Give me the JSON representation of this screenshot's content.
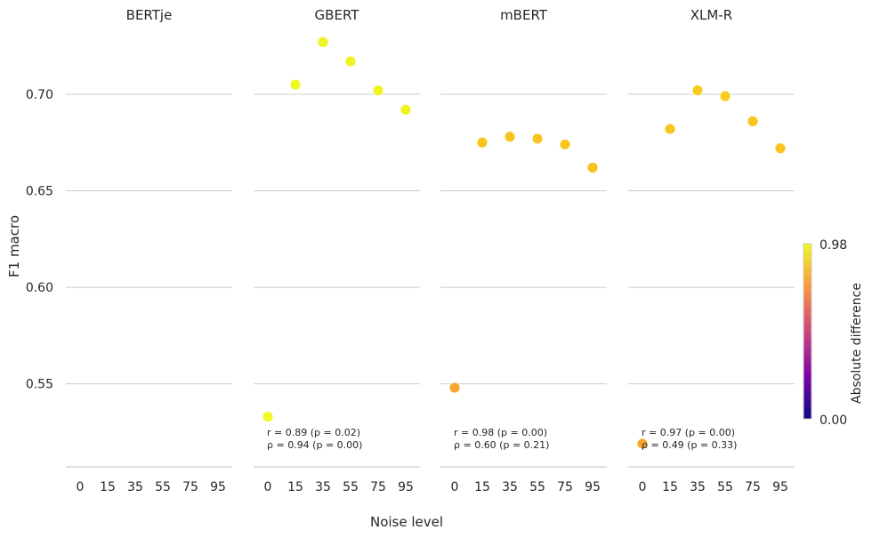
{
  "chart_data": {
    "type": "scatter",
    "xlabel": "Noise level",
    "ylabel": "F1 macro",
    "x_categories": [
      "0",
      "15",
      "35",
      "55",
      "75",
      "95"
    ],
    "ylim": [
      0.507,
      0.735
    ],
    "yticks": [
      "0.55",
      "0.60",
      "0.65",
      "0.70"
    ],
    "grid": "horizontal",
    "colorbar": {
      "label": "Absolute  difference",
      "min_label": "0.00",
      "max_label": "0.98",
      "colormap": "plasma",
      "range": [
        0.0,
        0.98
      ]
    },
    "colors": {
      "dark_orange": "#f9a52c",
      "mid_yellow": "#f8c51f",
      "bright_yellow": "#f0f921",
      "grid": "#cccccc"
    },
    "panels": [
      {
        "title": "BERTje",
        "points": [],
        "stats": []
      },
      {
        "title": "GBERT",
        "points": [
          {
            "x": "0",
            "y": 0.533,
            "color": 0.97
          },
          {
            "x": "15",
            "y": 0.705,
            "color": 0.97
          },
          {
            "x": "35",
            "y": 0.727,
            "color": 0.96
          },
          {
            "x": "55",
            "y": 0.717,
            "color": 0.96
          },
          {
            "x": "75",
            "y": 0.702,
            "color": 0.96
          },
          {
            "x": "95",
            "y": 0.692,
            "color": 0.96
          }
        ],
        "stats": [
          "r = 0.89 (p = 0.02)",
          "ρ = 0.94 (p = 0.00)"
        ]
      },
      {
        "title": "mBERT",
        "points": [
          {
            "x": "0",
            "y": 0.548,
            "color": 0.8
          },
          {
            "x": "15",
            "y": 0.675,
            "color": 0.89
          },
          {
            "x": "35",
            "y": 0.678,
            "color": 0.89
          },
          {
            "x": "55",
            "y": 0.677,
            "color": 0.89
          },
          {
            "x": "75",
            "y": 0.674,
            "color": 0.89
          },
          {
            "x": "95",
            "y": 0.662,
            "color": 0.88
          }
        ],
        "stats": [
          "r = 0.98 (p = 0.00)",
          "ρ = 0.60 (p = 0.21)"
        ]
      },
      {
        "title": "XLM-R",
        "points": [
          {
            "x": "0",
            "y": 0.519,
            "color": 0.8
          },
          {
            "x": "15",
            "y": 0.682,
            "color": 0.89
          },
          {
            "x": "35",
            "y": 0.702,
            "color": 0.9
          },
          {
            "x": "55",
            "y": 0.699,
            "color": 0.9
          },
          {
            "x": "75",
            "y": 0.686,
            "color": 0.89
          },
          {
            "x": "95",
            "y": 0.672,
            "color": 0.89
          }
        ],
        "stats": [
          "r = 0.97 (p = 0.00)",
          "ρ = 0.49 (p = 0.33)"
        ]
      }
    ]
  }
}
